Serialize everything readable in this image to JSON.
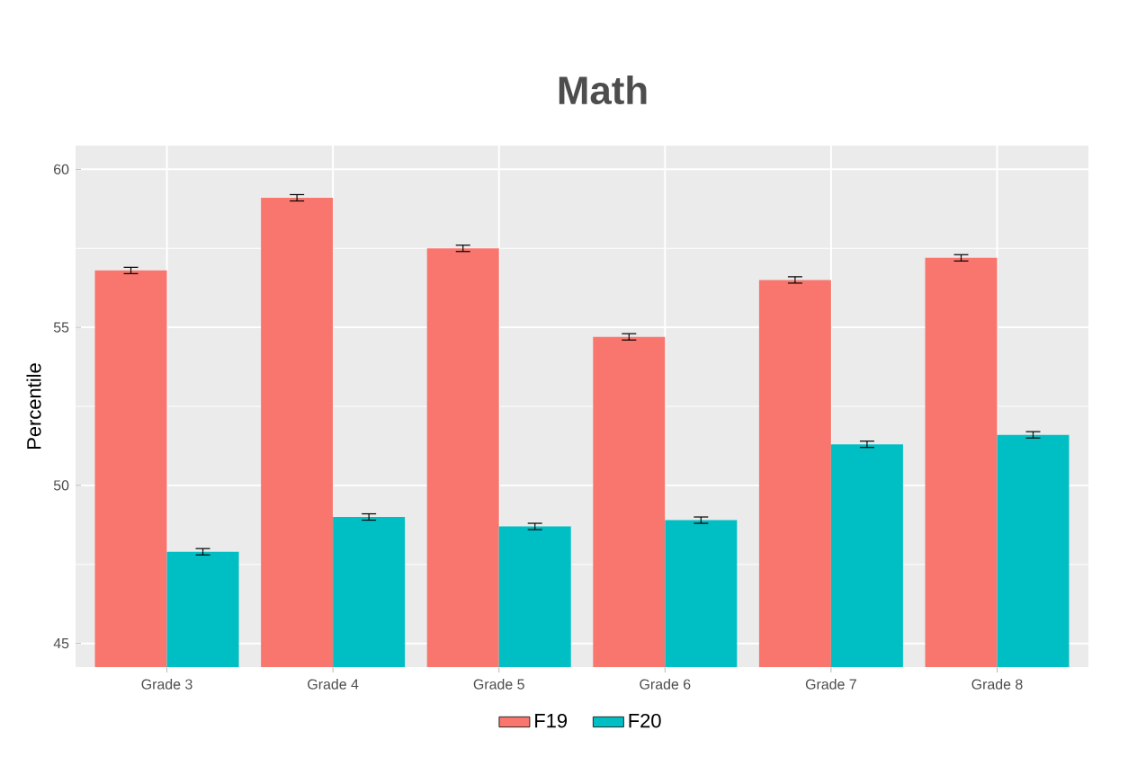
{
  "chart_data": {
    "type": "bar",
    "title": "Math",
    "ylabel": "Percentile",
    "categories": [
      "Grade 3",
      "Grade 4",
      "Grade 5",
      "Grade 6",
      "Grade 7",
      "Grade 8"
    ],
    "series": [
      {
        "name": "F19",
        "color": "#f8766d",
        "values": [
          56.8,
          59.1,
          57.5,
          54.7,
          56.5,
          57.2
        ],
        "errors": [
          0.1,
          0.1,
          0.1,
          0.1,
          0.1,
          0.1
        ]
      },
      {
        "name": "F20",
        "color": "#00bfc4",
        "values": [
          47.9,
          49.0,
          48.7,
          48.9,
          51.3,
          51.6
        ],
        "errors": [
          0.1,
          0.1,
          0.1,
          0.1,
          0.1,
          0.1
        ]
      }
    ],
    "ylim": [
      44.25,
      60.75
    ],
    "yticks": [
      45,
      50,
      55,
      60
    ],
    "grid": true,
    "legend": "bottom"
  }
}
